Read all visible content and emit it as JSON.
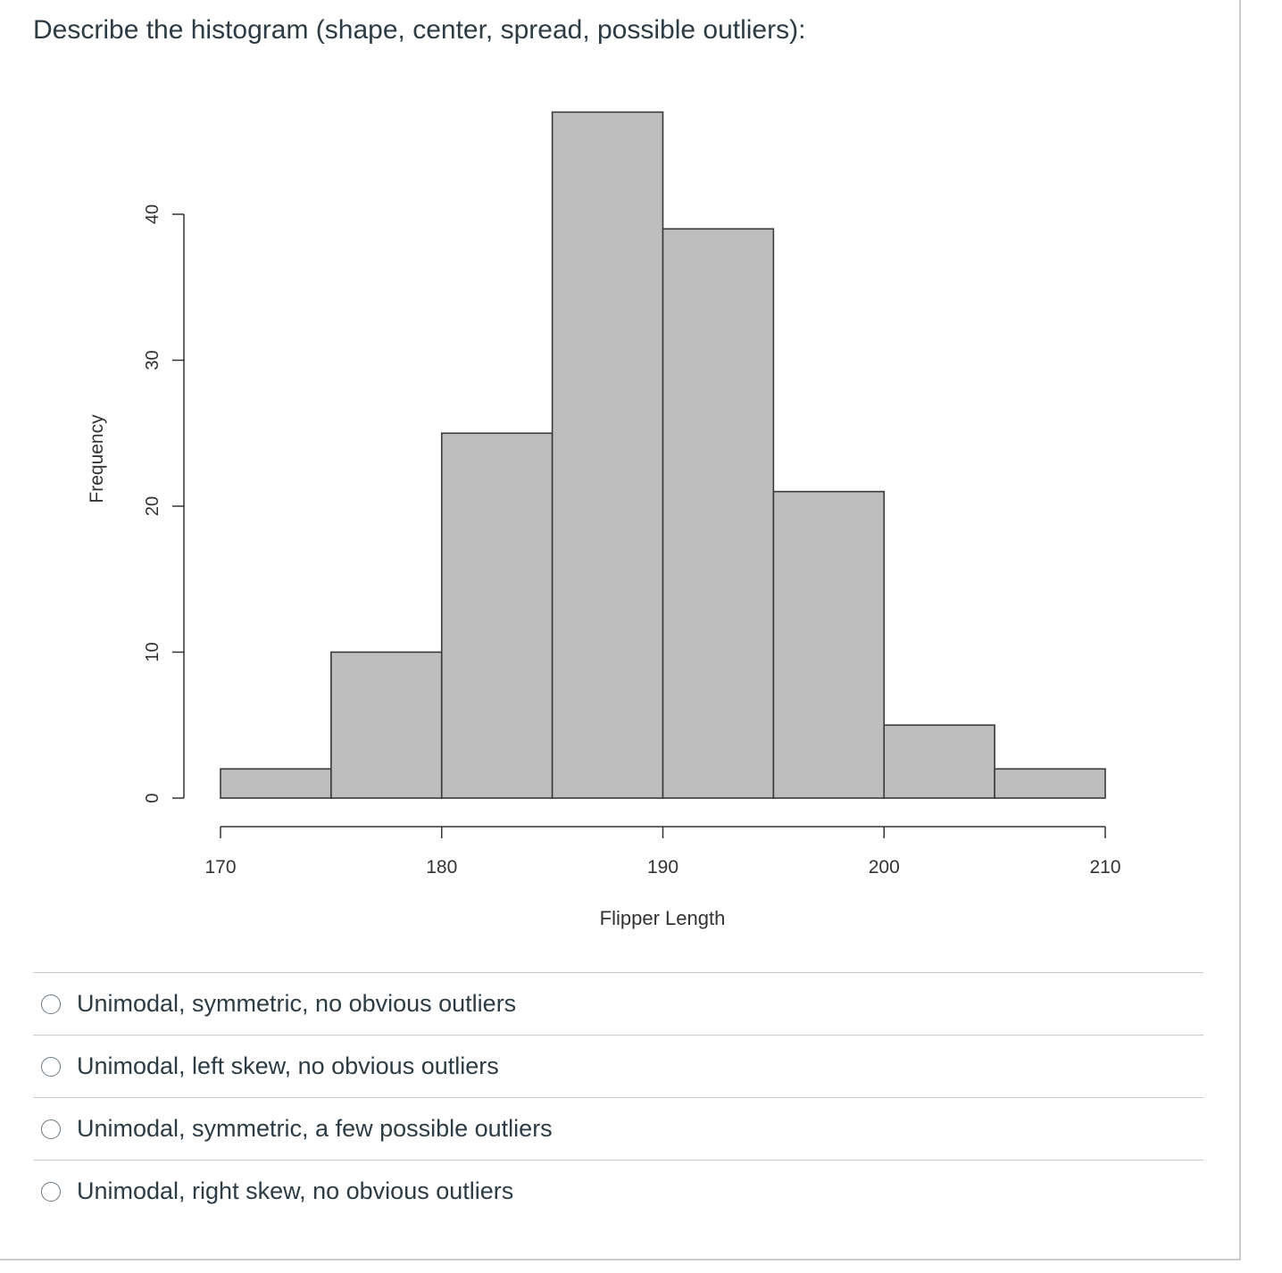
{
  "question": {
    "text": "Describe the histogram (shape, center, spread, possible outliers):"
  },
  "chart_data": {
    "type": "bar",
    "title": "",
    "xlabel": "Flipper Length",
    "ylabel": "Frequency",
    "bins": [
      {
        "x0": 170,
        "x1": 175,
        "count": 2
      },
      {
        "x0": 175,
        "x1": 180,
        "count": 10
      },
      {
        "x0": 180,
        "x1": 185,
        "count": 25
      },
      {
        "x0": 185,
        "x1": 190,
        "count": 47
      },
      {
        "x0": 190,
        "x1": 195,
        "count": 39
      },
      {
        "x0": 195,
        "x1": 200,
        "count": 21
      },
      {
        "x0": 200,
        "x1": 205,
        "count": 5
      },
      {
        "x0": 205,
        "x1": 210,
        "count": 2
      }
    ],
    "xticks": [
      170,
      180,
      190,
      200,
      210
    ],
    "yticks": [
      0,
      10,
      20,
      30,
      40
    ],
    "xlim": [
      170,
      210
    ],
    "ylim": [
      0,
      47
    ],
    "grid": false,
    "bar_color": "#bebebe",
    "edge_color": "#3a3a3a"
  },
  "answers": [
    {
      "label": "Unimodal, symmetric, no obvious outliers"
    },
    {
      "label": "Unimodal, left skew, no obvious outliers"
    },
    {
      "label": "Unimodal, symmetric, a few possible outliers"
    },
    {
      "label": "Unimodal, right skew, no obvious outliers"
    }
  ]
}
